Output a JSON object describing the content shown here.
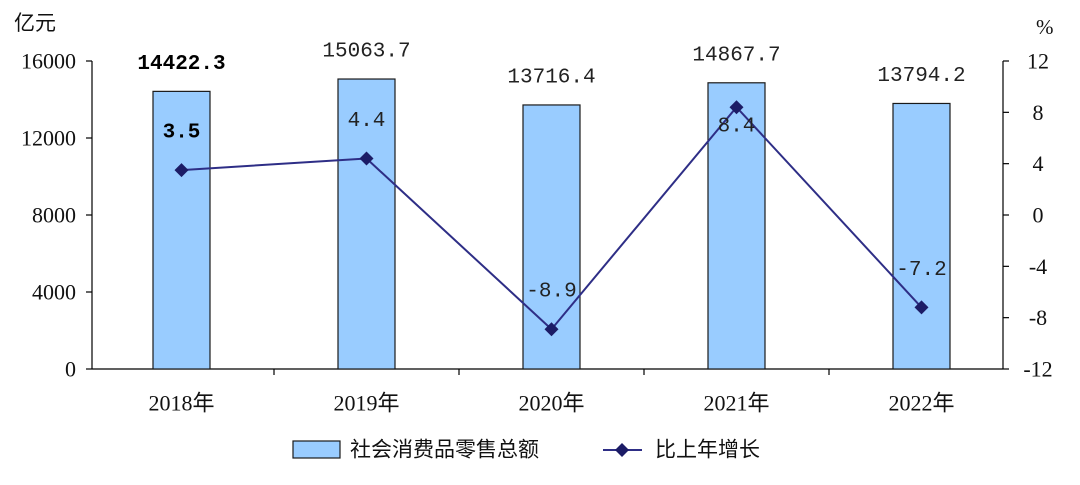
{
  "chart_data": {
    "type": "bar",
    "categories": [
      "2018年",
      "2019年",
      "2020年",
      "2021年",
      "2022年"
    ],
    "series": [
      {
        "name": "社会消费品零售总额",
        "type": "bar",
        "axis": "left",
        "values": [
          14422.3,
          15063.7,
          13716.4,
          14867.7,
          13794.2
        ],
        "color": "#99CCFF",
        "border_color": "#1A1A1A"
      },
      {
        "name": "比上年增长",
        "type": "line",
        "axis": "right",
        "values": [
          3.5,
          4.4,
          -8.9,
          8.4,
          -7.2
        ],
        "color": "#2E2E86",
        "marker": "diamond",
        "marker_color": "#1C1C66"
      }
    ],
    "ylabel": "亿元",
    "y2label": "%",
    "ylim": [
      0,
      16000
    ],
    "yticks": [
      0,
      4000,
      8000,
      12000,
      16000
    ],
    "y2lim": [
      -12,
      12
    ],
    "y2ticks": [
      -12,
      -8,
      -4,
      0,
      4,
      8,
      12
    ],
    "grid": false,
    "legend": "bottom-center"
  }
}
